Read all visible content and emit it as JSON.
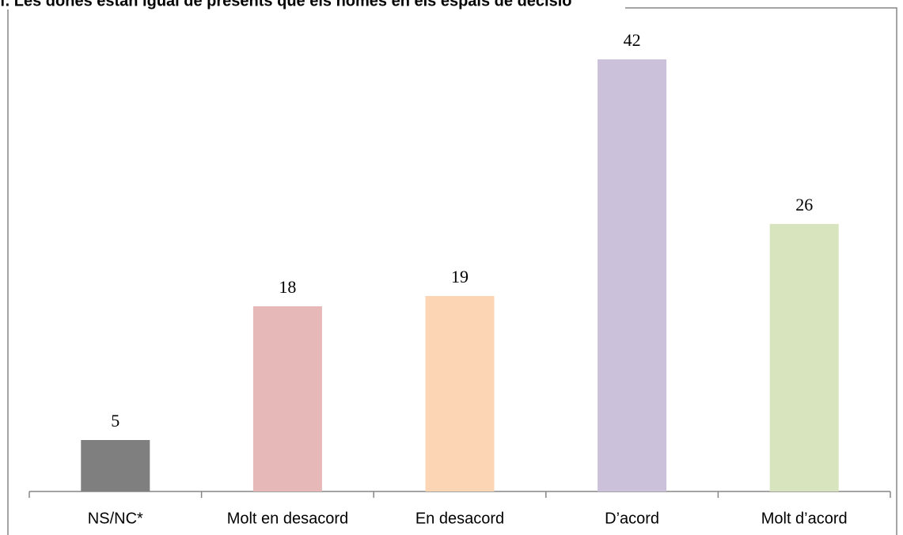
{
  "chart_data": {
    "type": "bar",
    "title": "f. Les dones estan igual de presents que els homes en els espais de decisió",
    "categories": [
      "NS/NC*",
      "Molt en desacord",
      "En desacord",
      "D’acord",
      "Molt d’acord"
    ],
    "values": [
      5,
      18,
      19,
      42,
      26
    ],
    "colors": [
      "#7f7f7f",
      "#e6b9b8",
      "#fcd5b5",
      "#ccc1da",
      "#d7e4bd"
    ],
    "ylim": [
      0,
      45
    ],
    "grid": false
  }
}
